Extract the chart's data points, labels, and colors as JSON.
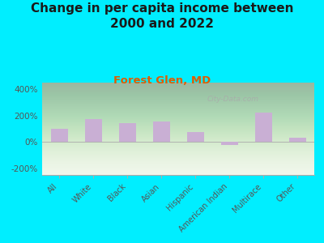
{
  "title": "Change in per capita income between\n2000 and 2022",
  "subtitle": "Forest Glen, MD",
  "categories": [
    "All",
    "White",
    "Black",
    "Asian",
    "Hispanic",
    "American Indian",
    "Multirace",
    "Other"
  ],
  "values": [
    100,
    175,
    140,
    155,
    75,
    -25,
    220,
    35
  ],
  "bar_color": "#c9afd4",
  "title_fontsize": 11,
  "subtitle_fontsize": 9.5,
  "subtitle_color": "#e05c00",
  "title_color": "#1a1a1a",
  "background_outer": "#00eeff",
  "ylim": [
    -250,
    450
  ],
  "yticks": [
    -200,
    0,
    200,
    400
  ],
  "ytick_labels": [
    "-200%",
    "0%",
    "200%",
    "400%"
  ],
  "watermark": "City-Data.com",
  "tick_color": "#555555",
  "tick_fontsize": 7.5,
  "xtick_fontsize": 7.0
}
